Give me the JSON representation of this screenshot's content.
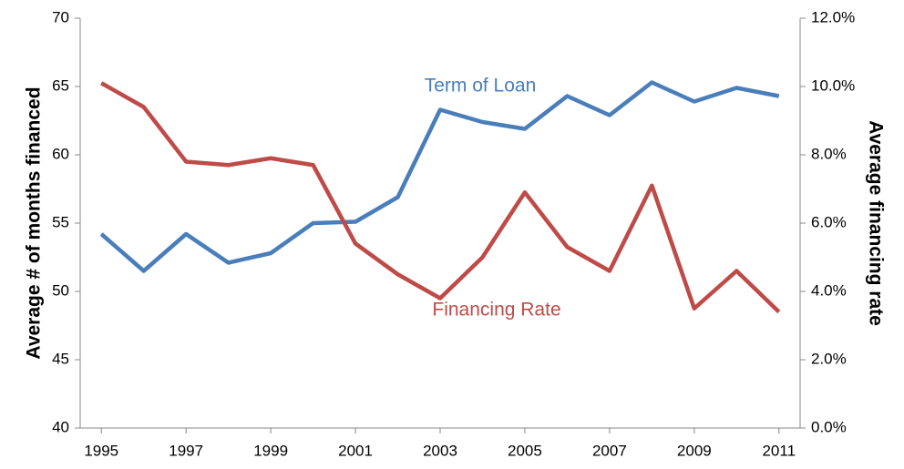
{
  "chart_data": {
    "type": "line",
    "x": [
      1995,
      1996,
      1997,
      1998,
      1999,
      2000,
      2001,
      2002,
      2003,
      2004,
      2005,
      2006,
      2007,
      2008,
      2009,
      2010,
      2011
    ],
    "xlim": [
      1994.5,
      2011.5
    ],
    "xticks": [
      1995,
      1997,
      1999,
      2001,
      2003,
      2005,
      2007,
      2009,
      2011
    ],
    "ylabel": "Average # of months financed",
    "y2label": "Average financing rate",
    "ylim": [
      40,
      70
    ],
    "yticks": [
      40,
      45,
      50,
      55,
      60,
      65,
      70
    ],
    "y2lim": [
      0,
      12
    ],
    "y2ticks": [
      {
        "value": 0,
        "label": "0.0%"
      },
      {
        "value": 2,
        "label": "2.0%"
      },
      {
        "value": 4,
        "label": "4.0%"
      },
      {
        "value": 6,
        "label": "6.0%"
      },
      {
        "value": 8,
        "label": "8.0%"
      },
      {
        "value": 10,
        "label": "10.0%"
      },
      {
        "value": 12,
        "label": "12.0%"
      }
    ],
    "grid": false,
    "series": [
      {
        "name": "Term of Loan",
        "color": "#4a7ebb",
        "values": [
          54.2,
          51.5,
          54.2,
          52.1,
          52.8,
          55.0,
          55.1,
          56.9,
          63.3,
          62.4,
          61.9,
          64.3,
          62.9,
          65.3,
          63.9,
          64.9,
          64.3
        ]
      },
      {
        "name": "Financing Rate",
        "color": "#be4b48",
        "axis": "y2",
        "values": [
          10.1,
          9.4,
          7.8,
          7.7,
          7.9,
          7.7,
          5.4,
          4.5,
          3.8,
          5.0,
          6.9,
          5.3,
          4.6,
          7.1,
          3.5,
          4.6,
          3.4
        ]
      }
    ]
  }
}
